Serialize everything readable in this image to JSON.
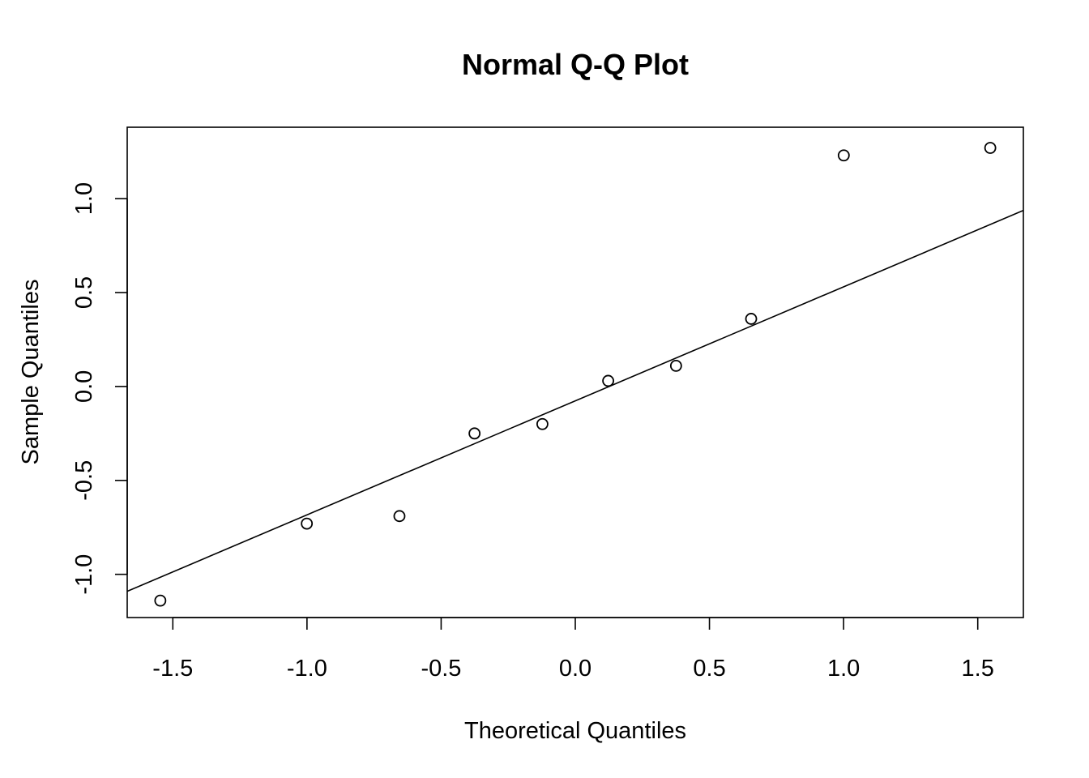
{
  "chart_data": {
    "type": "scatter",
    "title": "Normal Q-Q Plot",
    "xlabel": "Theoretical Quantiles",
    "ylabel": "Sample Quantiles",
    "xlim": [
      -1.67,
      1.67
    ],
    "ylim": [
      -1.23,
      1.38
    ],
    "x_ticks": [
      -1.5,
      -1.0,
      -0.5,
      0.0,
      0.5,
      1.0,
      1.5
    ],
    "x_tick_labels": [
      "-1.5",
      "-1.0",
      "-0.5",
      "0.0",
      "0.5",
      "1.0",
      "1.5"
    ],
    "y_ticks": [
      -1.0,
      -0.5,
      0.0,
      0.5,
      1.0
    ],
    "y_tick_labels": [
      "-1.0",
      "-0.5",
      "0.0",
      "0.5",
      "1.0"
    ],
    "series": [
      {
        "x": [
          -1.5466,
          -1.0006,
          -0.6554,
          -0.3755,
          -0.1226,
          0.1226,
          0.3755,
          0.6554,
          1.0006,
          1.5466
        ],
        "y": [
          -1.14,
          -0.73,
          -0.69,
          -0.25,
          -0.2,
          0.03,
          0.11,
          0.36,
          1.23,
          1.27
        ]
      }
    ],
    "reference_line": {
      "intercept": -0.0765,
      "slope": 0.607
    },
    "marker": "open-circle",
    "grid": false,
    "colors": {
      "points": "#000000",
      "line": "#000000",
      "frame": "#000000"
    }
  }
}
